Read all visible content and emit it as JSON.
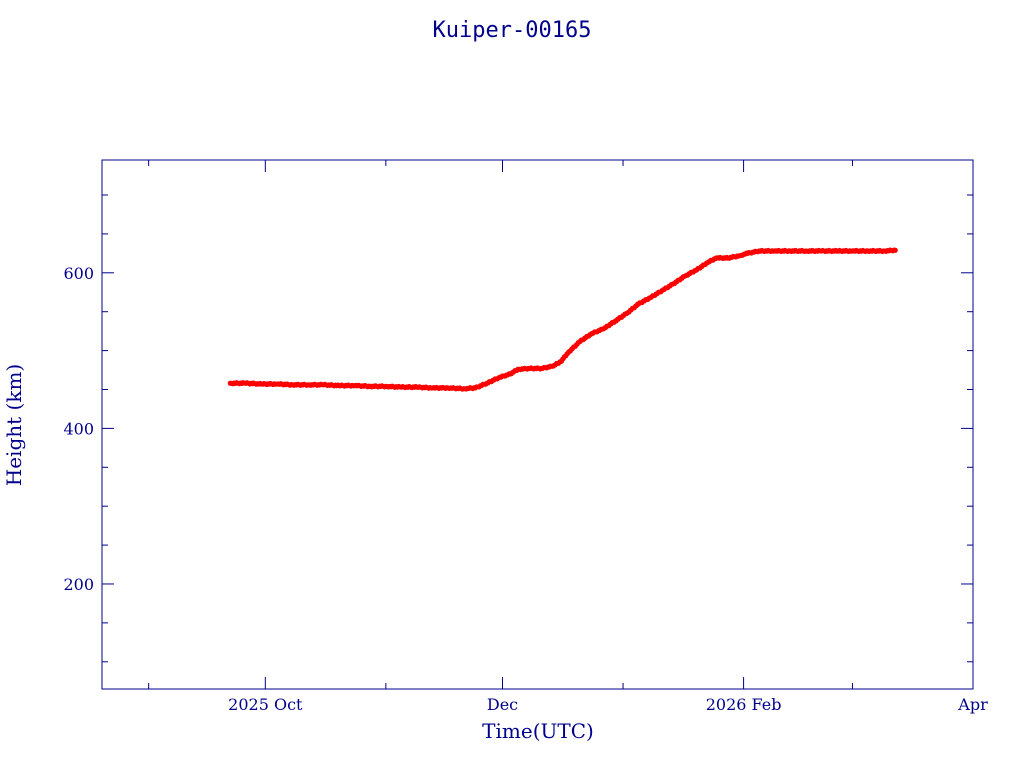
{
  "chart_data": {
    "type": "scatter",
    "title": "Kuiper-00165",
    "xlabel": "Time(UTC)",
    "ylabel": "Height (km)",
    "x_axis": {
      "type": "date",
      "range": [
        "2025-08-20",
        "2026-04-01"
      ],
      "major_ticks": [
        {
          "date": "2025-10-01",
          "label": "2025 Oct"
        },
        {
          "date": "2025-12-01",
          "label": "Dec"
        },
        {
          "date": "2026-02-01",
          "label": "2026 Feb"
        },
        {
          "date": "2026-04-01",
          "label": "Apr"
        }
      ],
      "minor_ticks": [
        "2025-09-01",
        "2025-11-01",
        "2026-01-01",
        "2026-03-01"
      ]
    },
    "y_axis": {
      "range": [
        65,
        745
      ],
      "major_ticks": [
        {
          "value": 200,
          "label": "200"
        },
        {
          "value": 400,
          "label": "400"
        },
        {
          "value": 600,
          "label": "600"
        }
      ],
      "minor_ticks": [
        100,
        150,
        250,
        300,
        350,
        450,
        500,
        550,
        650,
        700
      ]
    },
    "grid": false,
    "marker_color": "#ff0000",
    "outline_color": "#00008b",
    "series": [
      {
        "points": [
          [
            "2025-09-22",
            458
          ],
          [
            "2025-09-26",
            458
          ],
          [
            "2025-09-30",
            457
          ],
          [
            "2025-10-04",
            457
          ],
          [
            "2025-10-08",
            456
          ],
          [
            "2025-10-12",
            456
          ],
          [
            "2025-10-16",
            456
          ],
          [
            "2025-10-20",
            455
          ],
          [
            "2025-10-24",
            455
          ],
          [
            "2025-10-28",
            454
          ],
          [
            "2025-11-01",
            454
          ],
          [
            "2025-11-05",
            453
          ],
          [
            "2025-11-09",
            453
          ],
          [
            "2025-11-13",
            452
          ],
          [
            "2025-11-17",
            452
          ],
          [
            "2025-11-21",
            451
          ],
          [
            "2025-11-24",
            452
          ],
          [
            "2025-11-27",
            458
          ],
          [
            "2025-11-30",
            465
          ],
          [
            "2025-12-03",
            470
          ],
          [
            "2025-12-05",
            476
          ],
          [
            "2025-12-08",
            477
          ],
          [
            "2025-12-11",
            477
          ],
          [
            "2025-12-14",
            480
          ],
          [
            "2025-12-16",
            486
          ],
          [
            "2025-12-18",
            498
          ],
          [
            "2025-12-21",
            512
          ],
          [
            "2025-12-24",
            522
          ],
          [
            "2025-12-27",
            528
          ],
          [
            "2025-12-30",
            538
          ],
          [
            "2026-01-02",
            548
          ],
          [
            "2026-01-05",
            560
          ],
          [
            "2026-01-08",
            568
          ],
          [
            "2026-01-11",
            577
          ],
          [
            "2026-01-14",
            586
          ],
          [
            "2026-01-17",
            596
          ],
          [
            "2026-01-20",
            604
          ],
          [
            "2026-01-23",
            614
          ],
          [
            "2026-01-25",
            619
          ],
          [
            "2026-01-28",
            619
          ],
          [
            "2026-01-31",
            622
          ],
          [
            "2026-02-02",
            625
          ],
          [
            "2026-02-05",
            628
          ],
          [
            "2026-02-09",
            628
          ],
          [
            "2026-02-13",
            628
          ],
          [
            "2026-02-17",
            628
          ],
          [
            "2026-02-21",
            628
          ],
          [
            "2026-02-25",
            628
          ],
          [
            "2026-03-01",
            628
          ],
          [
            "2026-03-05",
            628
          ],
          [
            "2026-03-09",
            628
          ],
          [
            "2026-03-12",
            629
          ]
        ]
      }
    ]
  }
}
